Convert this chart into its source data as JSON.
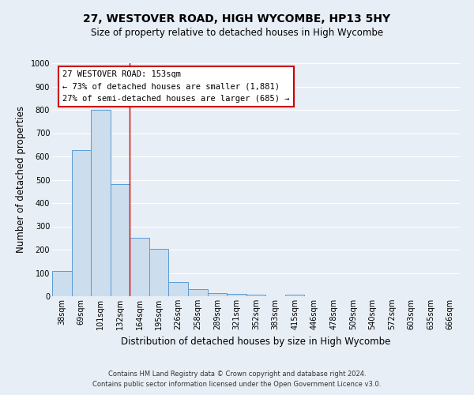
{
  "title": "27, WESTOVER ROAD, HIGH WYCOMBE, HP13 5HY",
  "subtitle": "Size of property relative to detached houses in High Wycombe",
  "xlabel": "Distribution of detached houses by size in High Wycombe",
  "ylabel": "Number of detached properties",
  "bar_labels": [
    "38sqm",
    "69sqm",
    "101sqm",
    "132sqm",
    "164sqm",
    "195sqm",
    "226sqm",
    "258sqm",
    "289sqm",
    "321sqm",
    "352sqm",
    "383sqm",
    "415sqm",
    "446sqm",
    "478sqm",
    "509sqm",
    "540sqm",
    "572sqm",
    "603sqm",
    "635sqm",
    "666sqm"
  ],
  "bar_values": [
    110,
    628,
    800,
    480,
    250,
    205,
    60,
    30,
    15,
    10,
    8,
    0,
    8,
    0,
    0,
    0,
    0,
    0,
    0,
    0,
    0
  ],
  "bar_color": "#ccdded",
  "bar_edge_color": "#5b9bd5",
  "ylim": [
    0,
    1000
  ],
  "yticks": [
    0,
    100,
    200,
    300,
    400,
    500,
    600,
    700,
    800,
    900,
    1000
  ],
  "vline_color": "#cc0000",
  "annotation_title": "27 WESTOVER ROAD: 153sqm",
  "annotation_line1": "← 73% of detached houses are smaller (1,881)",
  "annotation_line2": "27% of semi-detached houses are larger (685) →",
  "annotation_box_color": "#ffffff",
  "annotation_box_edge": "#cc0000",
  "footer1": "Contains HM Land Registry data © Crown copyright and database right 2024.",
  "footer2": "Contains public sector information licensed under the Open Government Licence v3.0.",
  "background_color": "#e8eef5",
  "grid_color": "#ffffff",
  "title_fontsize": 10,
  "subtitle_fontsize": 8.5,
  "axis_label_fontsize": 8.5,
  "tick_fontsize": 7,
  "footer_fontsize": 6,
  "annotation_fontsize": 7.5
}
